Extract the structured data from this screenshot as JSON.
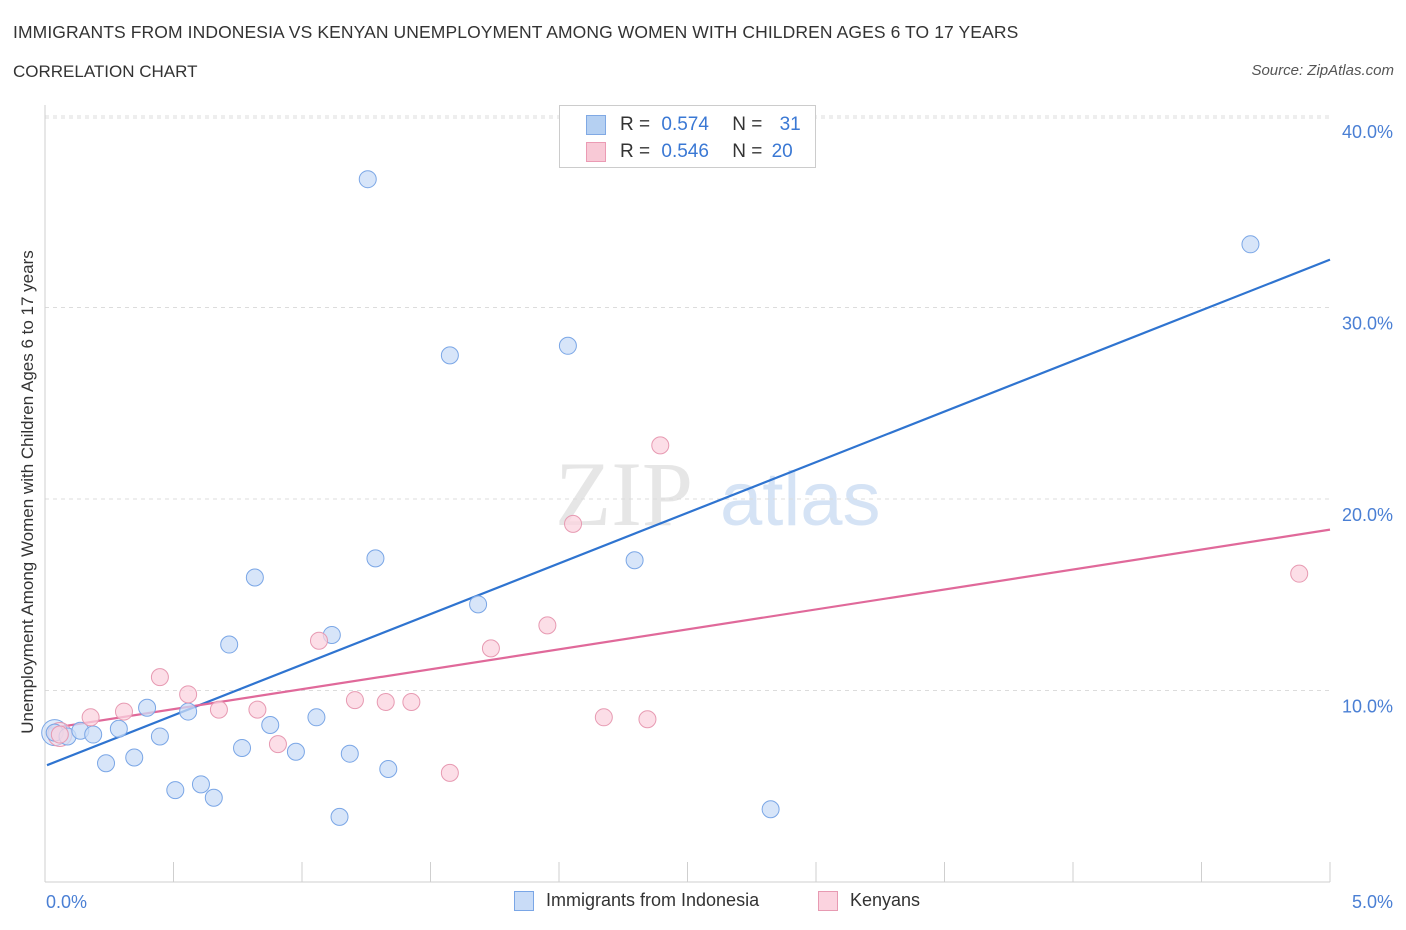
{
  "header": {
    "title": "IMMIGRANTS FROM INDONESIA VS KENYAN UNEMPLOYMENT AMONG WOMEN WITH CHILDREN AGES 6 TO 17 YEARS",
    "subtitle": "CORRELATION CHART",
    "source": "Source: ZipAtlas.com"
  },
  "watermark": {
    "zip": "ZIP",
    "atlas": "atlas"
  },
  "legend_top": {
    "rows": [
      {
        "r_label": "R =",
        "r_value": "0.574",
        "n_label": "N =",
        "n_value": "31",
        "color": "#a9c8f0",
        "border": "#6b9be0"
      },
      {
        "r_label": "R =",
        "r_value": "0.546",
        "n_label": "N =",
        "n_value": "20",
        "color": "#f7c0d0",
        "border": "#e88aa8"
      }
    ]
  },
  "legend_bottom": [
    {
      "label": "Immigrants from Indonesia",
      "color": "#c9dcf7",
      "border": "#7aa6e6"
    },
    {
      "label": "Kenyans",
      "color": "#fbd3df",
      "border": "#e79ab2"
    }
  ],
  "chart_data": {
    "type": "scatter",
    "title": "IMMIGRANTS FROM INDONESIA VS KENYAN UNEMPLOYMENT AMONG WOMEN WITH CHILDREN AGES 6 TO 17 YEARS",
    "xlabel": "",
    "ylabel": "Unemployment Among Women with Children Ages 6 to 17 years",
    "xlim": [
      0,
      5
    ],
    "ylim": [
      0,
      40
    ],
    "x_tick_labels": [
      "0.0%",
      "5.0%"
    ],
    "y_ticks": [
      10,
      20,
      30,
      40
    ],
    "y_tick_labels": [
      "10.0%",
      "20.0%",
      "30.0%",
      "40.0%"
    ],
    "grid": true,
    "series": [
      {
        "name": "Immigrants from Indonesia",
        "color": "#7aa6e6",
        "fill": "#c9dcf7",
        "line_color": "#2f74d0",
        "trend": {
          "x": [
            0,
            5
          ],
          "y": [
            6.1,
            32.5
          ]
        },
        "points": [
          [
            0.03,
            7.8
          ],
          [
            0.08,
            7.6
          ],
          [
            0.13,
            7.9
          ],
          [
            0.18,
            7.7
          ],
          [
            0.23,
            6.2
          ],
          [
            0.28,
            8.0
          ],
          [
            0.34,
            6.5
          ],
          [
            0.39,
            9.1
          ],
          [
            0.44,
            7.6
          ],
          [
            0.5,
            4.8
          ],
          [
            0.55,
            8.9
          ],
          [
            0.6,
            5.1
          ],
          [
            0.65,
            4.4
          ],
          [
            0.71,
            12.4
          ],
          [
            0.76,
            7.0
          ],
          [
            0.81,
            15.9
          ],
          [
            0.87,
            8.2
          ],
          [
            0.97,
            6.8
          ],
          [
            1.05,
            8.6
          ],
          [
            1.11,
            12.9
          ],
          [
            1.14,
            3.4
          ],
          [
            1.18,
            6.7
          ],
          [
            1.25,
            36.7
          ],
          [
            1.28,
            16.9
          ],
          [
            1.33,
            5.9
          ],
          [
            1.57,
            27.5
          ],
          [
            1.68,
            14.5
          ],
          [
            2.03,
            28.0
          ],
          [
            2.29,
            16.8
          ],
          [
            2.82,
            3.8
          ],
          [
            4.69,
            33.3
          ]
        ]
      },
      {
        "name": "Kenyans",
        "color": "#e79ab2",
        "fill": "#fbd3df",
        "line_color": "#e0699a",
        "trend": {
          "x": [
            0,
            5
          ],
          "y": [
            8.0,
            18.4
          ]
        },
        "points": [
          [
            0.05,
            7.7
          ],
          [
            0.17,
            8.6
          ],
          [
            0.3,
            8.9
          ],
          [
            0.44,
            10.7
          ],
          [
            0.55,
            9.8
          ],
          [
            0.67,
            9.0
          ],
          [
            0.82,
            9.0
          ],
          [
            0.9,
            7.2
          ],
          [
            1.06,
            12.6
          ],
          [
            1.2,
            9.5
          ],
          [
            1.32,
            9.4
          ],
          [
            1.42,
            9.4
          ],
          [
            1.57,
            5.7
          ],
          [
            1.73,
            12.2
          ],
          [
            1.95,
            13.4
          ],
          [
            2.05,
            18.7
          ],
          [
            2.17,
            8.6
          ],
          [
            2.34,
            8.5
          ],
          [
            2.39,
            22.8
          ],
          [
            4.88,
            16.1
          ]
        ]
      }
    ]
  }
}
